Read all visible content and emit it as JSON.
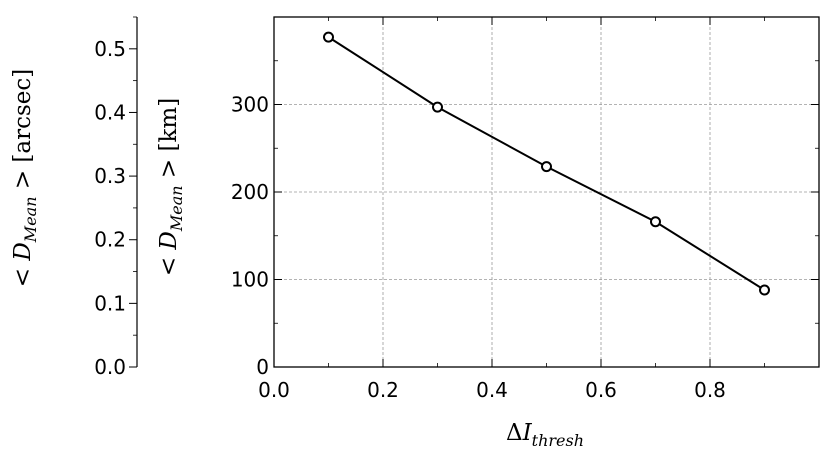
{
  "chart_data": {
    "type": "line",
    "x": [
      0.1,
      0.3,
      0.5,
      0.7,
      0.9
    ],
    "series": [
      {
        "values": [
          377,
          297,
          229,
          166,
          88
        ],
        "color": "#000000",
        "marker": "circle"
      }
    ],
    "xlabel": "ΔI_thresh",
    "ylabel": "< D_Mean > [km]",
    "ylabel_secondary": "< D_Mean > [arcsec]",
    "xlim": [
      0,
      1.0
    ],
    "ylim": [
      0,
      400
    ],
    "ylim_secondary": [
      0,
      0.55
    ],
    "x_ticks": [
      "0.0",
      "0.2",
      "0.4",
      "0.6",
      "0.8"
    ],
    "y_ticks": [
      "0",
      "100",
      "200",
      "300"
    ],
    "y2_ticks": [
      "0.0",
      "0.1",
      "0.2",
      "0.3",
      "0.4",
      "0.5"
    ],
    "grid": true
  }
}
